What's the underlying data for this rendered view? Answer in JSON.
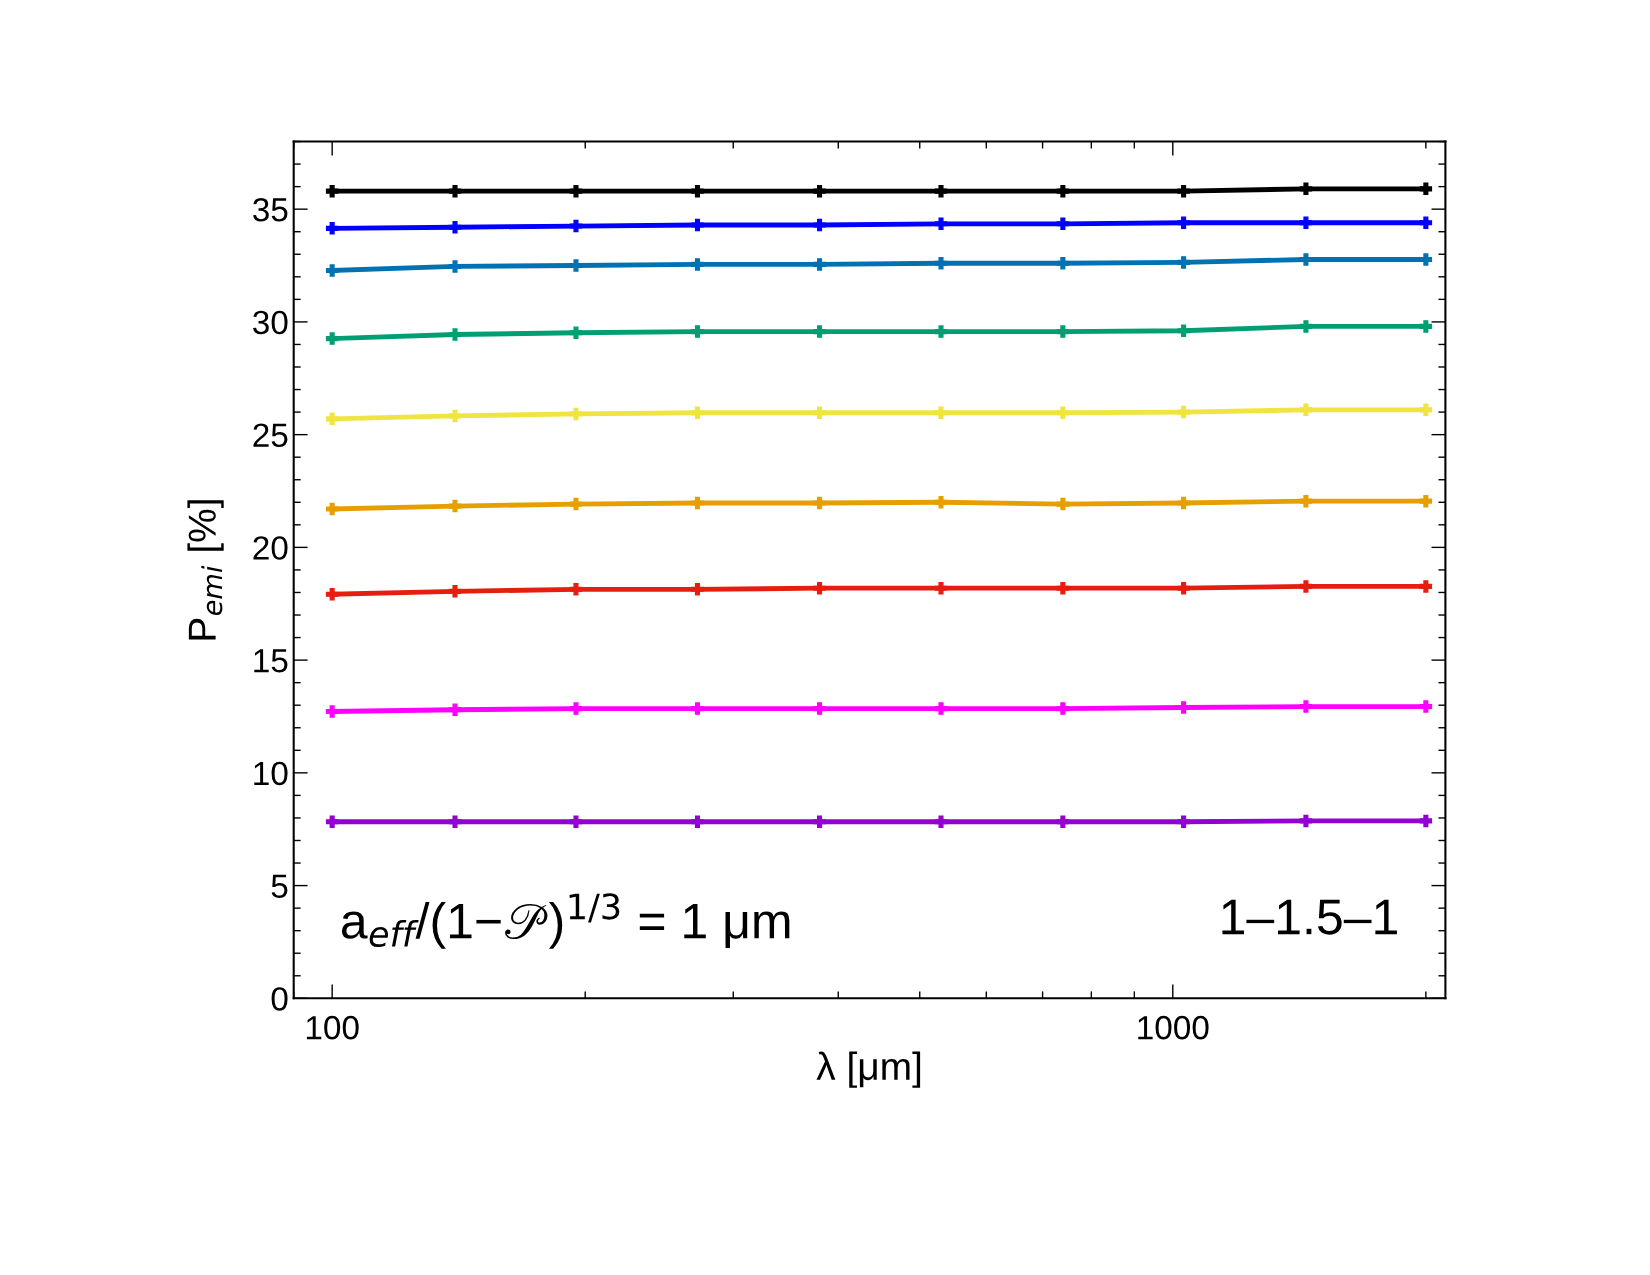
{
  "chart_data": {
    "type": "line",
    "xlabel": "λ [μm]",
    "ylabel": "P$_{emi}$ [%]",
    "x": [
      100,
      140,
      195,
      272,
      380,
      530,
      740,
      1030,
      1440,
      2000
    ],
    "log": "x",
    "xlim": [
      90,
      2110
    ],
    "xticks": [
      100,
      1000
    ],
    "ylim": [
      0,
      38
    ],
    "yticks": [
      0,
      5,
      10,
      15,
      20,
      25,
      30,
      35
    ],
    "marker": "cross",
    "line_style": "solid",
    "grid": false,
    "legend": false,
    "series": [
      {
        "color": "#000000",
        "values": [
          35.8,
          35.8,
          35.8,
          35.8,
          35.8,
          35.8,
          35.8,
          35.8,
          35.9,
          35.9
        ]
      },
      {
        "color": "#0000ff",
        "values": [
          34.15,
          34.2,
          34.25,
          34.3,
          34.3,
          34.35,
          34.35,
          34.4,
          34.4,
          34.4
        ]
      },
      {
        "color": "#0072b2",
        "values": [
          32.28,
          32.46,
          32.5,
          32.55,
          32.55,
          32.6,
          32.6,
          32.64,
          32.77,
          32.77
        ]
      },
      {
        "color": "#009e73",
        "values": [
          29.26,
          29.44,
          29.52,
          29.57,
          29.57,
          29.57,
          29.57,
          29.61,
          29.8,
          29.8
        ]
      },
      {
        "color": "#f0e442",
        "values": [
          25.7,
          25.83,
          25.92,
          25.97,
          25.97,
          25.97,
          25.97,
          26.0,
          26.1,
          26.1
        ]
      },
      {
        "color": "#e69f00",
        "values": [
          21.7,
          21.83,
          21.92,
          21.97,
          21.97,
          22.0,
          21.92,
          21.97,
          22.05,
          22.05
        ]
      },
      {
        "color": "#e51e10",
        "values": [
          17.92,
          18.05,
          18.14,
          18.14,
          18.19,
          18.19,
          18.19,
          18.19,
          18.27,
          18.27
        ]
      },
      {
        "color": "#ff00ff",
        "values": [
          12.72,
          12.8,
          12.85,
          12.85,
          12.85,
          12.85,
          12.85,
          12.9,
          12.94,
          12.94
        ]
      },
      {
        "color": "#9400d3",
        "values": [
          7.83,
          7.83,
          7.83,
          7.83,
          7.83,
          7.83,
          7.83,
          7.83,
          7.87,
          7.87
        ]
      }
    ],
    "annotations": [
      "a$_{eff}$/(1−𝒫)$^{1/3}$ = 1 μm",
      "1–1.5–1"
    ]
  }
}
